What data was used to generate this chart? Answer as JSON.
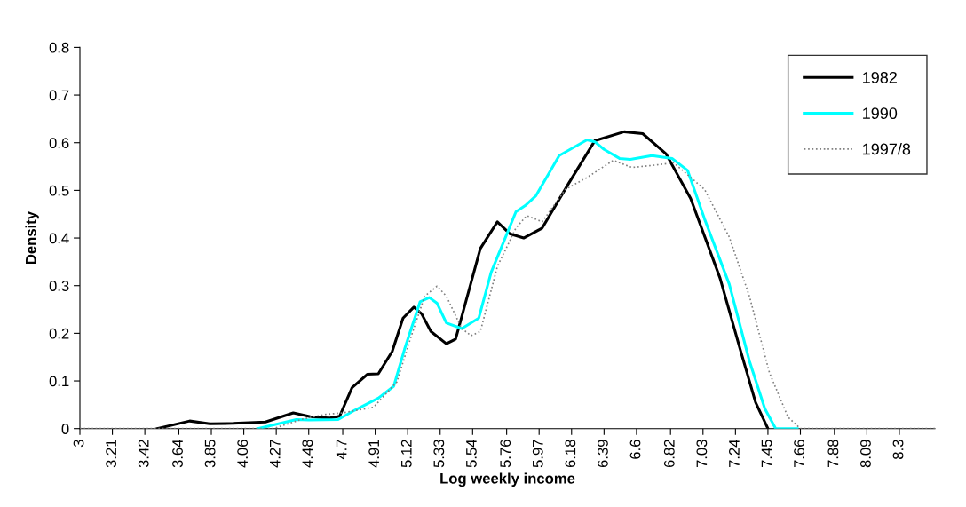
{
  "chart_data": {
    "type": "line",
    "xlabel": "Log weekly income",
    "ylabel": "Density",
    "xlim": [
      3,
      8.53
    ],
    "xticks": [
      3,
      3.21,
      3.42,
      3.64,
      3.85,
      4.06,
      4.27,
      4.48,
      4.7,
      4.91,
      5.12,
      5.33,
      5.54,
      5.76,
      5.97,
      6.18,
      6.39,
      6.6,
      6.82,
      7.03,
      7.24,
      7.45,
      7.66,
      7.88,
      8.09,
      8.3
    ],
    "ylim": [
      0,
      0.8
    ],
    "yticks": [
      0,
      0.1,
      0.2,
      0.3,
      0.4,
      0.5,
      0.6,
      0.7,
      0.8
    ],
    "grid": false,
    "legend": "top right",
    "series": [
      {
        "name": "1982",
        "color": "#000000",
        "line_style": "solid",
        "x": [
          3.5,
          3.71,
          3.84,
          3.99,
          4.2,
          4.38,
          4.49,
          4.61,
          4.68,
          4.76,
          4.86,
          4.93,
          5.02,
          5.09,
          5.16,
          5.21,
          5.27,
          5.37,
          5.43,
          5.59,
          5.7,
          5.78,
          5.87,
          5.99,
          6.16,
          6.33,
          6.52,
          6.64,
          6.79,
          6.95,
          7.14,
          7.27,
          7.37,
          7.45
        ],
        "values": [
          0,
          0.016,
          0.01,
          0.011,
          0.014,
          0.033,
          0.025,
          0.022,
          0.026,
          0.086,
          0.114,
          0.115,
          0.162,
          0.232,
          0.255,
          0.241,
          0.204,
          0.178,
          0.188,
          0.378,
          0.434,
          0.409,
          0.4,
          0.421,
          0.514,
          0.604,
          0.623,
          0.619,
          0.577,
          0.483,
          0.316,
          0.167,
          0.055,
          0
        ]
      },
      {
        "name": "1990",
        "color": "#00ffff",
        "line_style": "solid",
        "x": [
          4.15,
          4.4,
          4.48,
          4.67,
          4.78,
          4.93,
          5.03,
          5.1,
          5.2,
          5.26,
          5.31,
          5.37,
          5.47,
          5.58,
          5.66,
          5.82,
          5.88,
          5.95,
          6.1,
          6.28,
          6.33,
          6.39,
          6.49,
          6.56,
          6.7,
          6.83,
          6.93,
          7.04,
          7.2,
          7.33,
          7.43,
          7.5,
          7.64
        ],
        "values": [
          0,
          0.019,
          0.018,
          0.019,
          0.039,
          0.064,
          0.089,
          0.167,
          0.266,
          0.275,
          0.263,
          0.222,
          0.21,
          0.232,
          0.328,
          0.455,
          0.468,
          0.489,
          0.573,
          0.606,
          0.602,
          0.586,
          0.567,
          0.565,
          0.573,
          0.567,
          0.542,
          0.44,
          0.303,
          0.142,
          0.042,
          0,
          0
        ]
      },
      {
        "name": "1997/8",
        "color": "#808080",
        "line_style": "dotted",
        "x": [
          3,
          4.25,
          4.44,
          4.59,
          4.7,
          4.9,
          5.05,
          5.14,
          5.23,
          5.31,
          5.37,
          5.47,
          5.53,
          5.59,
          5.7,
          5.82,
          5.89,
          5.99,
          6.14,
          6.28,
          6.45,
          6.57,
          6.72,
          6.84,
          7.04,
          7.2,
          7.33,
          7.46,
          7.58,
          7.66,
          8.53
        ],
        "values": [
          0,
          0,
          0.02,
          0.03,
          0.033,
          0.045,
          0.098,
          0.191,
          0.278,
          0.299,
          0.278,
          0.21,
          0.195,
          0.204,
          0.34,
          0.421,
          0.447,
          0.434,
          0.502,
          0.527,
          0.563,
          0.548,
          0.553,
          0.558,
          0.502,
          0.402,
          0.278,
          0.117,
          0.024,
          0,
          0
        ]
      }
    ]
  }
}
